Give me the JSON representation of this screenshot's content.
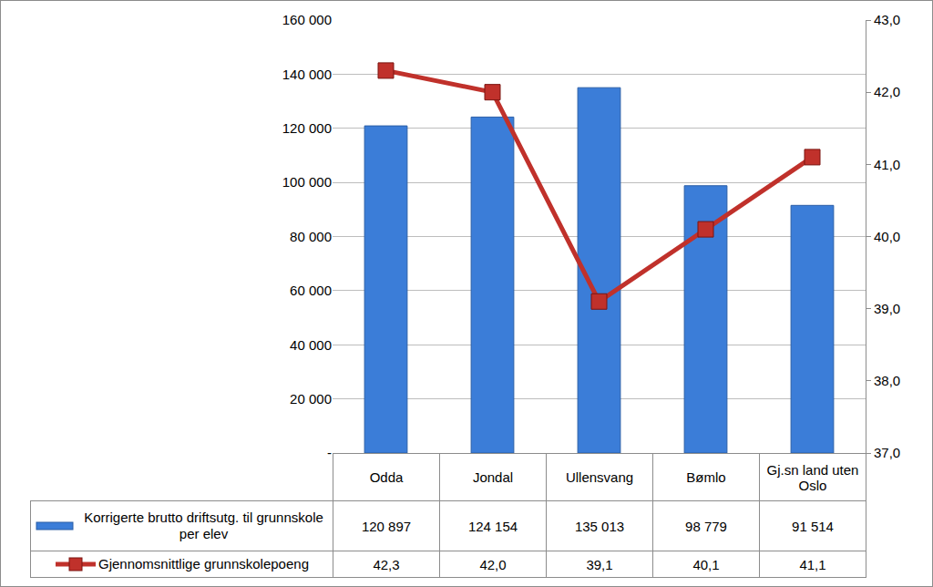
{
  "chart_data": {
    "type": "bar",
    "categories": [
      "Odda",
      "Jondal",
      "Ullensvang",
      "Bømlo",
      "Gj.sn land uten Oslo"
    ],
    "series": [
      {
        "name": "Korrigerte brutto driftsutg. til grunnskole per elev",
        "type": "bar",
        "color": "#3b7dd8",
        "values": [
          120897,
          124154,
          135013,
          98779,
          91514
        ],
        "value_labels": [
          "120 897",
          "124 154",
          "135 013",
          "98 779",
          "91 514"
        ]
      },
      {
        "name": "Gjennomsnittlige grunnskolepoeng",
        "type": "line",
        "marker": "square",
        "color": "#c0312b",
        "axis": "y2",
        "values": [
          42.3,
          42.0,
          39.1,
          40.1,
          41.1
        ],
        "value_labels": [
          "42,3",
          "42,0",
          "39,1",
          "40,1",
          "41,1"
        ]
      }
    ],
    "ylim": [
      0,
      160000
    ],
    "yticks": [
      {
        "value": 0,
        "label": "-"
      },
      {
        "value": 20000,
        "label": "20 000"
      },
      {
        "value": 40000,
        "label": "40 000"
      },
      {
        "value": 60000,
        "label": "60 000"
      },
      {
        "value": 80000,
        "label": "80 000"
      },
      {
        "value": 100000,
        "label": "100 000"
      },
      {
        "value": 120000,
        "label": "120 000"
      },
      {
        "value": 140000,
        "label": "140 000"
      },
      {
        "value": 160000,
        "label": "160 000"
      }
    ],
    "y2lim": [
      37,
      43
    ],
    "y2ticks": [
      {
        "value": 37,
        "label": "37,0"
      },
      {
        "value": 38,
        "label": "38,0"
      },
      {
        "value": 39,
        "label": "39,0"
      },
      {
        "value": 40,
        "label": "40,0"
      },
      {
        "value": 41,
        "label": "41,0"
      },
      {
        "value": 42,
        "label": "42,0"
      },
      {
        "value": 43,
        "label": "43,0"
      }
    ],
    "grid": true
  }
}
